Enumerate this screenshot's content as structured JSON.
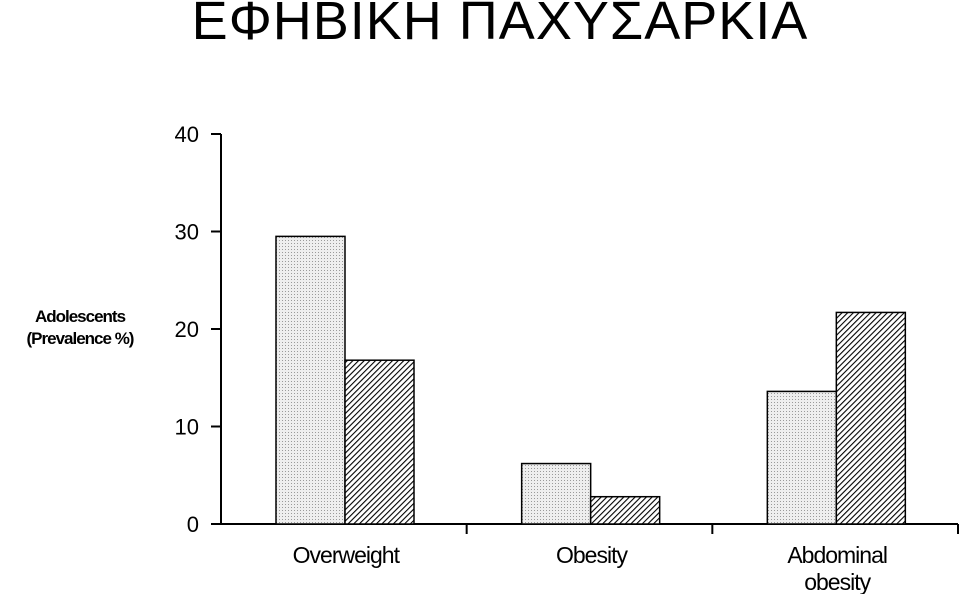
{
  "title": "ΕΦΗΒΙΚΗ ΠΑΧΥΣΑΡΚΙΑ",
  "ylabel_lines": [
    "Adolescents",
    "(Prevalence %)"
  ],
  "colors": {
    "axis": "#000000",
    "series1_fill": "#e9e9e9",
    "series2_hatch": "#000000"
  },
  "chart_data": {
    "type": "bar",
    "title": "ΕΦΗΒΙΚΗ ΠΑΧΥΣΑΡΚΙΑ",
    "ylabel": "Adolescents (Prevalence %)",
    "xlabel": "",
    "categories": [
      [
        "Overweight"
      ],
      [
        "Obesity"
      ],
      [
        "Abdominal",
        "obesity"
      ]
    ],
    "series": [
      {
        "values": [
          29.5,
          6.2,
          13.6
        ],
        "pattern": "dotted"
      },
      {
        "values": [
          16.8,
          2.8,
          21.7
        ],
        "pattern": "hatched"
      }
    ],
    "ylim": [
      0,
      40
    ],
    "yticks": [
      0,
      10,
      20,
      30,
      40
    ],
    "grid": false,
    "legend": "none"
  }
}
